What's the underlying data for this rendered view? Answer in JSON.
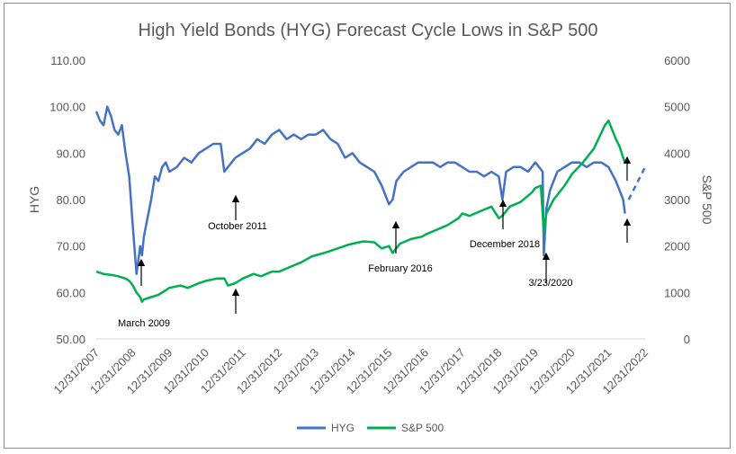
{
  "chart_data": {
    "type": "line",
    "title": "High Yield Bonds (HYG) Forecast Cycle Lows in S&P 500",
    "ylabel_left": "HYG",
    "ylabel_right": "S&P 500",
    "xlabel": "",
    "ylim_left": [
      50,
      110
    ],
    "ylim_right": [
      0,
      6000
    ],
    "xlim": [
      2008.0,
      2023.0
    ],
    "yticks_left": [
      "50.00",
      "60.00",
      "70.00",
      "80.00",
      "90.00",
      "100.00",
      "110.00"
    ],
    "yticks_right": [
      "0",
      "1000",
      "2000",
      "3000",
      "4000",
      "5000",
      "6000"
    ],
    "xtick_labels": [
      "12/31/2007",
      "12/31/2008",
      "12/31/2009",
      "12/31/2010",
      "12/31/2011",
      "12/31/2012",
      "12/31/2013",
      "12/31/2014",
      "12/31/2015",
      "12/31/2016",
      "12/31/2017",
      "12/31/2018",
      "12/31/2019",
      "12/31/2020",
      "12/31/2021",
      "12/31/2022"
    ],
    "grid": false,
    "legend_position": "bottom",
    "series": [
      {
        "name": "HYG",
        "axis": "left",
        "color": "#4472c4",
        "x": [
          2008.0,
          2008.1,
          2008.2,
          2008.3,
          2008.4,
          2008.5,
          2008.6,
          2008.7,
          2008.8,
          2008.9,
          2009.0,
          2009.1,
          2009.2,
          2009.25,
          2009.3,
          2009.4,
          2009.5,
          2009.6,
          2009.7,
          2009.8,
          2009.9,
          2010.0,
          2010.2,
          2010.4,
          2010.6,
          2010.8,
          2011.0,
          2011.2,
          2011.4,
          2011.5,
          2011.6,
          2011.8,
          2012.0,
          2012.2,
          2012.4,
          2012.6,
          2012.8,
          2013.0,
          2013.2,
          2013.4,
          2013.6,
          2013.8,
          2014.0,
          2014.2,
          2014.4,
          2014.6,
          2014.8,
          2015.0,
          2015.2,
          2015.4,
          2015.6,
          2015.8,
          2016.0,
          2016.1,
          2016.2,
          2016.4,
          2016.6,
          2016.8,
          2017.0,
          2017.2,
          2017.4,
          2017.6,
          2017.8,
          2018.0,
          2018.2,
          2018.4,
          2018.6,
          2018.8,
          2019.0,
          2019.1,
          2019.2,
          2019.4,
          2019.6,
          2019.8,
          2020.0,
          2020.1,
          2020.2,
          2020.23,
          2020.3,
          2020.4,
          2020.6,
          2020.8,
          2021.0,
          2021.2,
          2021.4,
          2021.6,
          2021.8,
          2022.0,
          2022.2,
          2022.4,
          2022.45
        ],
        "values": [
          99,
          97,
          96,
          100,
          98,
          95,
          94,
          96,
          90,
          85,
          74,
          64,
          70,
          68,
          72,
          76,
          80,
          85,
          84,
          87,
          88,
          86,
          87,
          89,
          88,
          90,
          91,
          92,
          92,
          86,
          87,
          89,
          90,
          91,
          93,
          92,
          94,
          95,
          93,
          94,
          93,
          94,
          94,
          95,
          93,
          92,
          89,
          90,
          88,
          87,
          86,
          83,
          79,
          80,
          84,
          86,
          87,
          88,
          88,
          88,
          87,
          88,
          88,
          87,
          86,
          86,
          85,
          86,
          85,
          80,
          86,
          87,
          87,
          86,
          88,
          87,
          86,
          68,
          78,
          82,
          86,
          87,
          88,
          88,
          87,
          88,
          88,
          87,
          84,
          80,
          77
        ]
      },
      {
        "name": "S&P 500",
        "axis": "right",
        "color": "#00b050",
        "x": [
          2008.0,
          2008.2,
          2008.4,
          2008.6,
          2008.8,
          2008.9,
          2009.0,
          2009.1,
          2009.2,
          2009.25,
          2009.3,
          2009.5,
          2009.7,
          2009.9,
          2010.0,
          2010.3,
          2010.5,
          2010.8,
          2011.0,
          2011.3,
          2011.5,
          2011.6,
          2011.8,
          2012.0,
          2012.3,
          2012.5,
          2012.8,
          2013.0,
          2013.3,
          2013.6,
          2013.9,
          2014.0,
          2014.3,
          2014.6,
          2014.9,
          2015.0,
          2015.3,
          2015.6,
          2015.8,
          2016.0,
          2016.1,
          2016.3,
          2016.6,
          2016.9,
          2017.0,
          2017.3,
          2017.6,
          2017.9,
          2018.0,
          2018.2,
          2018.5,
          2018.8,
          2019.0,
          2019.1,
          2019.3,
          2019.6,
          2019.9,
          2020.0,
          2020.15,
          2020.23,
          2020.3,
          2020.5,
          2020.8,
          2021.0,
          2021.3,
          2021.6,
          2021.9,
          2022.0,
          2022.1,
          2022.2,
          2022.3,
          2022.4,
          2022.45
        ],
        "values": [
          1450,
          1400,
          1380,
          1350,
          1300,
          1250,
          1150,
          1000,
          900,
          800,
          850,
          900,
          950,
          1050,
          1100,
          1150,
          1100,
          1200,
          1250,
          1300,
          1300,
          1150,
          1200,
          1300,
          1400,
          1350,
          1450,
          1450,
          1550,
          1650,
          1780,
          1800,
          1870,
          1950,
          2030,
          2050,
          2100,
          2080,
          1950,
          2000,
          1850,
          2050,
          2150,
          2200,
          2250,
          2350,
          2450,
          2600,
          2700,
          2650,
          2750,
          2850,
          2600,
          2650,
          2850,
          2950,
          3150,
          3250,
          3300,
          2300,
          2700,
          3000,
          3300,
          3550,
          3800,
          4100,
          4600,
          4700,
          4500,
          4300,
          4150,
          3900,
          3800
        ]
      }
    ],
    "forecast_line": {
      "axis": "left",
      "style": "dashed",
      "color": "#4472c4",
      "x": [
        2022.55,
        2023.0
      ],
      "values": [
        80,
        87
      ]
    },
    "annotations": [
      {
        "text": "March 2009"
      },
      {
        "text": "October 2011"
      },
      {
        "text": "February 2016"
      },
      {
        "text": "December 2018"
      },
      {
        "text": "3/23/2020"
      }
    ]
  }
}
